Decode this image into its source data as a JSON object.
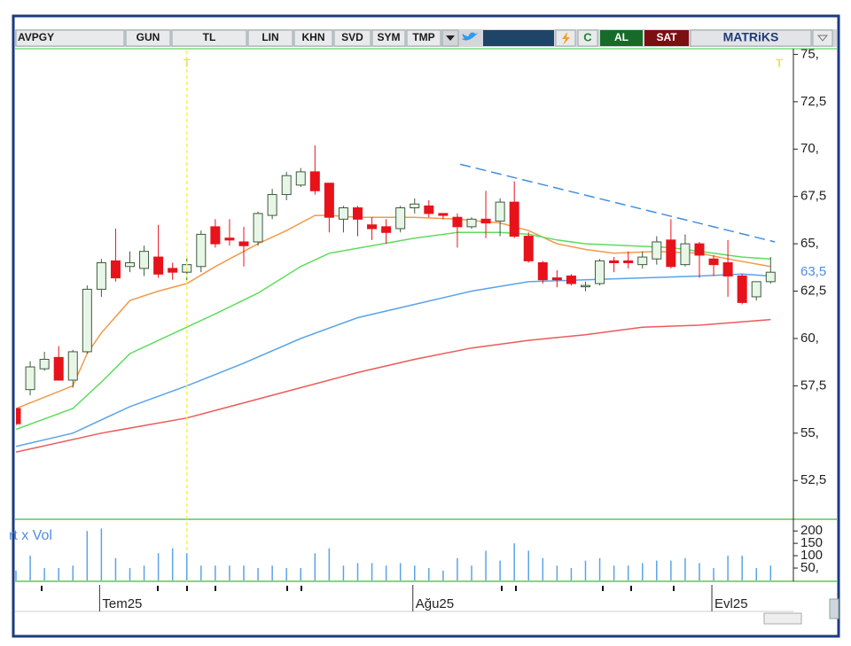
{
  "toolbar": {
    "symbol": "AVPGY",
    "items": [
      "GUN",
      "TL",
      "LIN",
      "KHN",
      "SVD",
      "SYM",
      "TMP"
    ],
    "buy": "AL",
    "sell": "SAT",
    "brand": "MATRiKS"
  },
  "chart_data": [
    {
      "type": "candlestick",
      "x": [
        0,
        1,
        2,
        3,
        4,
        5,
        6,
        7,
        8,
        9,
        10,
        11,
        12,
        13,
        14,
        15,
        16,
        17,
        18,
        19,
        20,
        21,
        22,
        23,
        24,
        25,
        26,
        27,
        28,
        29,
        30,
        31,
        32,
        33,
        34,
        35,
        36,
        37,
        38,
        39,
        40,
        41,
        42,
        43,
        44,
        45,
        46,
        47,
        48,
        49,
        50,
        51,
        52,
        53
      ],
      "open": [
        56.3,
        57.3,
        58.4,
        59.0,
        57.8,
        59.3,
        62.6,
        64.1,
        63.8,
        63.7,
        64.3,
        63.7,
        63.5,
        63.8,
        65.9,
        65.3,
        65.1,
        65.1,
        66.5,
        67.6,
        68.1,
        68.8,
        68.2,
        66.3,
        66.9,
        66.0,
        65.9,
        65.8,
        66.9,
        67.0,
        66.6,
        66.4,
        65.9,
        66.3,
        66.2,
        67.2,
        65.4,
        64.0,
        63.2,
        63.3,
        62.8,
        62.9,
        64.1,
        64.1,
        63.9,
        64.2,
        65.2,
        63.9,
        65.0,
        64.2,
        64.0,
        63.3,
        62.2,
        63.0
      ],
      "high": [
        56.3,
        58.8,
        59.3,
        59.6,
        59.4,
        62.8,
        64.2,
        65.8,
        64.6,
        64.9,
        66.0,
        64.0,
        64.4,
        65.7,
        66.3,
        66.3,
        65.9,
        66.7,
        67.9,
        68.8,
        69.0,
        70.2,
        68.2,
        67.0,
        67.0,
        66.4,
        66.3,
        67.0,
        67.4,
        67.3,
        66.6,
        66.6,
        66.4,
        67.8,
        67.4,
        68.3,
        65.6,
        64.1,
        63.6,
        63.4,
        63.0,
        64.2,
        64.3,
        64.6,
        64.6,
        65.4,
        66.3,
        65.5,
        65.1,
        64.4,
        65.2,
        63.4,
        63.0,
        64.3
      ],
      "low": [
        55.4,
        57.0,
        58.3,
        57.8,
        57.4,
        59.2,
        62.2,
        63.0,
        63.5,
        63.3,
        63.2,
        63.1,
        63.0,
        63.5,
        64.8,
        64.9,
        63.8,
        64.9,
        66.3,
        67.3,
        68.0,
        67.6,
        65.6,
        65.6,
        65.4,
        65.2,
        65.0,
        65.6,
        66.6,
        66.4,
        66.3,
        64.8,
        65.8,
        65.3,
        65.4,
        65.3,
        64.0,
        62.9,
        62.7,
        62.8,
        62.5,
        62.8,
        63.5,
        63.7,
        63.7,
        63.9,
        63.7,
        63.8,
        63.2,
        63.3,
        62.2,
        61.8,
        62.0,
        62.9
      ],
      "close": [
        55.5,
        58.5,
        58.9,
        57.8,
        59.3,
        62.6,
        64.0,
        63.2,
        64.0,
        64.6,
        63.4,
        63.5,
        63.9,
        65.5,
        65.0,
        65.2,
        64.9,
        66.6,
        67.6,
        68.6,
        68.8,
        67.8,
        66.4,
        66.9,
        66.3,
        65.8,
        65.6,
        66.9,
        67.1,
        66.6,
        66.5,
        65.9,
        66.3,
        66.1,
        67.2,
        65.4,
        64.1,
        63.1,
        63.1,
        62.9,
        62.8,
        64.1,
        64.0,
        64.0,
        64.3,
        65.1,
        63.8,
        65.0,
        64.4,
        63.9,
        63.3,
        61.9,
        63.0,
        63.5
      ],
      "up_color": "#e8f6e8",
      "down_color": "#e8121b",
      "series": [
        {
          "color": "#f39a4a",
          "x": [
            0,
            4,
            5,
            6,
            8,
            10,
            12,
            14,
            17,
            19,
            21,
            22,
            24,
            28,
            31,
            34,
            36,
            38,
            40,
            42,
            45,
            48,
            50,
            53
          ],
          "values": [
            56.3,
            57.5,
            59.2,
            60.3,
            62.0,
            62.5,
            62.9,
            63.8,
            65.0,
            65.7,
            66.5,
            66.5,
            66.4,
            66.4,
            66.3,
            66.1,
            65.7,
            65.0,
            64.7,
            64.5,
            64.6,
            64.5,
            64.2,
            63.8
          ]
        },
        {
          "color": "#5edc5e",
          "x": [
            0,
            4,
            6,
            8,
            12,
            14,
            17,
            20,
            22,
            25,
            28,
            31,
            34,
            36,
            38,
            40,
            43,
            46,
            49,
            51,
            53
          ],
          "values": [
            55.2,
            56.3,
            57.7,
            59.2,
            60.6,
            61.3,
            62.4,
            63.8,
            64.5,
            64.9,
            65.3,
            65.6,
            65.6,
            65.5,
            65.2,
            65.0,
            64.9,
            64.8,
            64.5,
            64.3,
            64.2
          ]
        },
        {
          "color": "#5aa3e8",
          "x": [
            0,
            4,
            8,
            12,
            16,
            20,
            24,
            28,
            32,
            36,
            40,
            44,
            48,
            51,
            53
          ],
          "values": [
            54.3,
            55.0,
            56.4,
            57.5,
            58.7,
            60.0,
            61.1,
            61.8,
            62.5,
            63.0,
            63.1,
            63.2,
            63.3,
            63.4,
            63.3
          ]
        },
        {
          "color": "#ec5a5a",
          "x": [
            0,
            6,
            12,
            16,
            20,
            24,
            28,
            32,
            36,
            40,
            44,
            48,
            53
          ],
          "values": [
            54.0,
            55.0,
            55.8,
            56.6,
            57.4,
            58.2,
            58.9,
            59.5,
            59.9,
            60.2,
            60.6,
            60.7,
            61.0
          ]
        }
      ],
      "trendline": {
        "color": "#3f8ee0",
        "x": [
          31.2,
          53.3
        ],
        "values": [
          69.2,
          65.1
        ]
      },
      "markers": [
        {
          "x": 12,
          "label": "T",
          "line": true
        },
        {
          "x": 53.6,
          "label": "T",
          "line": false
        }
      ],
      "last_price": {
        "value": 63.5,
        "label": "63,5"
      },
      "xlim": [
        0,
        54.6
      ],
      "xticks": [
        {
          "value": 6,
          "label": "Tem25"
        },
        {
          "value": 28,
          "label": "Ağu25"
        },
        {
          "value": 49,
          "label": "Evl25"
        }
      ],
      "ylim": [
        50.5,
        75.3
      ],
      "yticks": [
        {
          "value": 75,
          "label": "75,"
        },
        {
          "value": 72.5,
          "label": "72,5"
        },
        {
          "value": 70,
          "label": "70,"
        },
        {
          "value": 67.5,
          "label": "67,5"
        },
        {
          "value": 65,
          "label": "65,"
        },
        {
          "value": 62.5,
          "label": "62,5"
        },
        {
          "value": 60,
          "label": "60,"
        },
        {
          "value": 57.5,
          "label": "57,5"
        },
        {
          "value": 55,
          "label": "55,"
        },
        {
          "value": 52.5,
          "label": "52,5"
        }
      ]
    },
    {
      "type": "bar",
      "title": "rt x Vol",
      "color": "#5aa3e8",
      "values": [
        40,
        100,
        50,
        50,
        60,
        200,
        210,
        90,
        50,
        60,
        110,
        130,
        110,
        60,
        60,
        60,
        60,
        50,
        60,
        50,
        50,
        110,
        130,
        60,
        70,
        70,
        60,
        70,
        60,
        50,
        40,
        90,
        60,
        120,
        80,
        150,
        120,
        90,
        60,
        50,
        80,
        90,
        60,
        60,
        70,
        80,
        80,
        90,
        70,
        50,
        100,
        100,
        50,
        60
      ],
      "ylim": [
        0,
        240
      ],
      "yticks": [
        200,
        150,
        100,
        {
          "value": 50,
          "label": "50,"
        }
      ]
    }
  ]
}
